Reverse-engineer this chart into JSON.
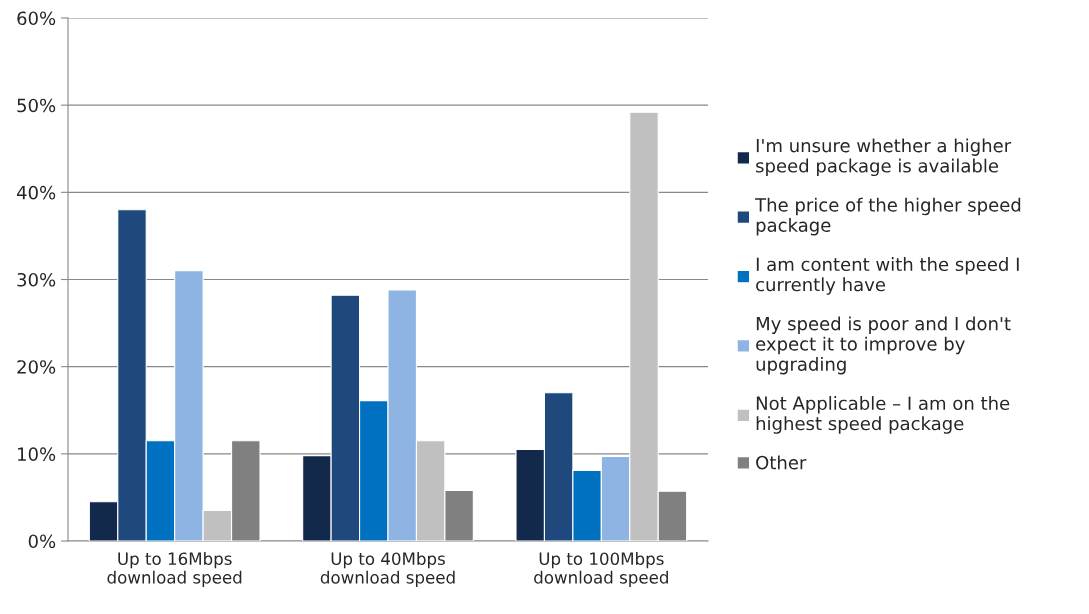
{
  "chart_data": {
    "type": "bar",
    "categories": [
      "Up to 16Mbps\ndownload speed",
      "Up to 40Mbps\ndownload speed",
      "Up to 100Mbps\ndownload speed"
    ],
    "series": [
      {
        "name": "I'm unsure whether a higher\nspeed package is available",
        "color": "#13294b",
        "values": [
          4.5,
          9.8,
          10.5
        ]
      },
      {
        "name": "The price of the higher speed\npackage",
        "color": "#1f497d",
        "values": [
          38,
          28.2,
          17
        ]
      },
      {
        "name": "I am content with the speed I\ncurrently have",
        "color": "#0070c0",
        "values": [
          11.5,
          16.1,
          8.1
        ]
      },
      {
        "name": "My speed is poor and I don't\nexpect it to improve by\nupgrading",
        "color": "#8db4e2",
        "values": [
          31,
          28.8,
          9.7
        ]
      },
      {
        "name": "Not Applicable – I am on the\nhighest speed package",
        "color": "#c0c0c0",
        "values": [
          3.5,
          11.5,
          49.2
        ]
      },
      {
        "name": "Other",
        "color": "#808080",
        "values": [
          11.5,
          5.8,
          5.7
        ]
      }
    ],
    "ylim": [
      0,
      60
    ],
    "yticks": [
      {
        "value": 0,
        "label": "0%"
      },
      {
        "value": 10,
        "label": "10%"
      },
      {
        "value": 20,
        "label": "20%"
      },
      {
        "value": 30,
        "label": "30%"
      },
      {
        "value": 40,
        "label": "40%"
      },
      {
        "value": 50,
        "label": "50%"
      },
      {
        "value": 60,
        "label": "60%"
      }
    ],
    "grid": "y",
    "legend": "right"
  }
}
